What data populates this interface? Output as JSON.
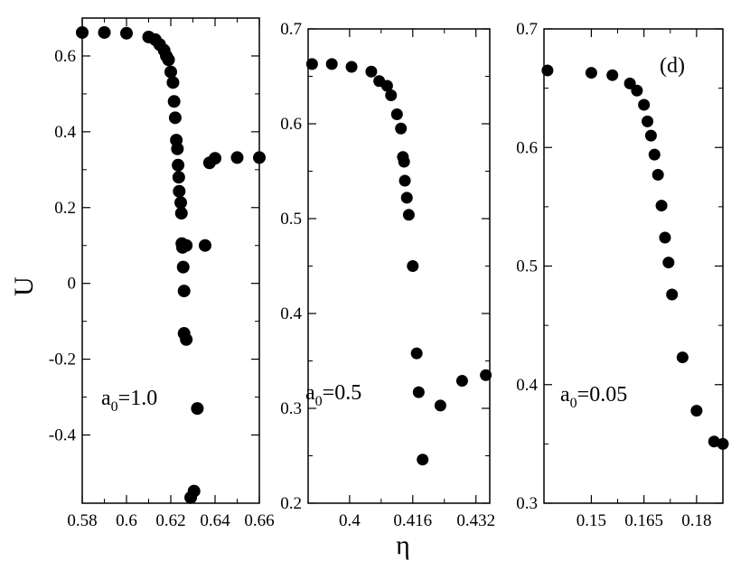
{
  "figure": {
    "ylabel": "U",
    "xlabel": "η"
  },
  "chart_data": [
    {
      "type": "scatter",
      "annotation": {
        "base": "a",
        "sub": "0",
        "rest": "=1.0"
      },
      "xlim": [
        0.58,
        0.66
      ],
      "ylim": [
        -0.58,
        0.7
      ],
      "xticks": [
        0.58,
        0.6,
        0.62,
        0.64,
        0.66
      ],
      "xtick_labels": [
        "0.58",
        "0.6",
        "0.62",
        "0.64",
        "0.66"
      ],
      "yticks": [
        -0.4,
        -0.2,
        0,
        0.2,
        0.4,
        0.6
      ],
      "ytick_labels": [
        "-0.4",
        "-0.2",
        "0",
        "0.2",
        "0.4",
        "0.6"
      ],
      "series": [
        {
          "x": [
            0.58,
            0.59,
            0.6,
            0.61,
            0.613,
            0.615,
            0.617,
            0.618,
            0.619,
            0.62,
            0.621,
            0.6215,
            0.622,
            0.6225,
            0.623,
            0.6233,
            0.6236,
            0.6238,
            0.6245,
            0.6248,
            0.625,
            0.6253,
            0.6256,
            0.626,
            0.626,
            0.627,
            0.627,
            0.629,
            0.6305,
            0.632,
            0.6355,
            0.6375,
            0.64,
            0.65,
            0.66
          ],
          "y": [
            0.662,
            0.662,
            0.66,
            0.65,
            0.643,
            0.63,
            0.615,
            0.6,
            0.59,
            0.558,
            0.53,
            0.48,
            0.437,
            0.378,
            0.355,
            0.312,
            0.28,
            0.243,
            0.213,
            0.185,
            0.105,
            0.095,
            0.043,
            -0.02,
            -0.132,
            -0.148,
            0.1,
            -0.565,
            -0.548,
            -0.33,
            0.1,
            0.318,
            0.33,
            0.332,
            0.332
          ]
        }
      ]
    },
    {
      "type": "scatter",
      "annotation": {
        "base": "a",
        "sub": "0",
        "rest": "=0.5"
      },
      "xlim": [
        0.3895,
        0.4355
      ],
      "ylim": [
        0.2,
        0.7
      ],
      "xticks": [
        0.4,
        0.416,
        0.432
      ],
      "xtick_labels": [
        "0.4",
        "0.416",
        "0.432"
      ],
      "yticks": [
        0.2,
        0.3,
        0.4,
        0.5,
        0.6,
        0.7
      ],
      "ytick_labels": [
        "0.2",
        "0.3",
        "0.4",
        "0.5",
        "0.6",
        "0.7"
      ],
      "series": [
        {
          "x": [
            0.3905,
            0.3955,
            0.4005,
            0.4055,
            0.4075,
            0.4095,
            0.4105,
            0.412,
            0.413,
            0.4135,
            0.4138,
            0.414,
            0.4145,
            0.415,
            0.416,
            0.417,
            0.4175,
            0.4185,
            0.423,
            0.4285,
            0.4345
          ],
          "y": [
            0.663,
            0.663,
            0.66,
            0.655,
            0.645,
            0.64,
            0.63,
            0.61,
            0.595,
            0.565,
            0.56,
            0.54,
            0.522,
            0.504,
            0.45,
            0.358,
            0.317,
            0.246,
            0.303,
            0.329,
            0.335
          ]
        }
      ]
    },
    {
      "type": "scatter",
      "annotation": {
        "base": "a",
        "sub": "0",
        "rest": "=0.05"
      },
      "xlim": [
        0.1365,
        0.1875
      ],
      "ylim": [
        0.3,
        0.7
      ],
      "xticks": [
        0.15,
        0.165,
        0.18
      ],
      "xtick_labels": [
        "0.15",
        "0.165",
        "0.18"
      ],
      "yticks": [
        0.3,
        0.4,
        0.5,
        0.6,
        0.7
      ],
      "ytick_labels": [
        "0.3",
        "0.4",
        "0.5",
        "0.6",
        "0.7"
      ],
      "panel_label": "(d)",
      "series": [
        {
          "x": [
            0.1375,
            0.15,
            0.156,
            0.161,
            0.163,
            0.165,
            0.166,
            0.167,
            0.168,
            0.169,
            0.17,
            0.171,
            0.172,
            0.173,
            0.176,
            0.18,
            0.185,
            0.19
          ],
          "y": [
            0.665,
            0.663,
            0.661,
            0.654,
            0.648,
            0.636,
            0.622,
            0.61,
            0.594,
            0.577,
            0.551,
            0.524,
            0.503,
            0.476,
            0.423,
            0.378,
            0.352,
            0.35
          ]
        }
      ]
    }
  ]
}
